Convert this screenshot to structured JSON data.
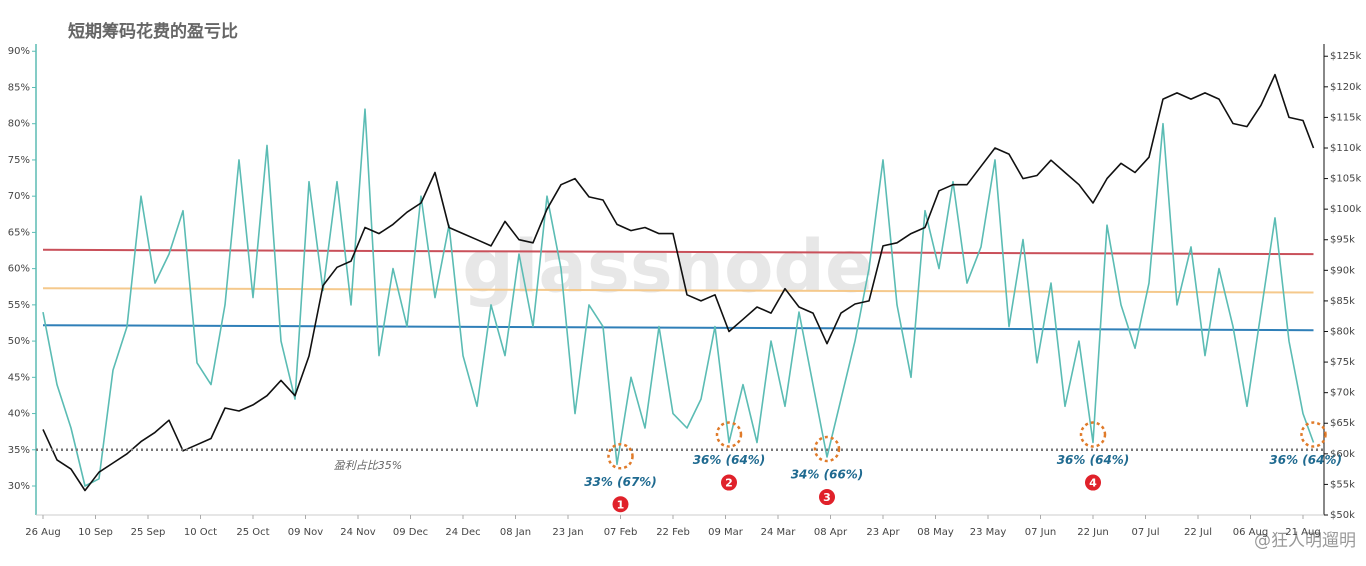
{
  "chart_data": {
    "type": "line",
    "title": "短期筹码花费的盈亏比",
    "watermark": "glassnode",
    "credit": "@狂人明遛明",
    "xlim": [
      -2,
      366
    ],
    "xticks": [
      {
        "value": 0,
        "label": "26 Aug"
      },
      {
        "value": 15,
        "label": "10 Sep"
      },
      {
        "value": 30,
        "label": "25 Sep"
      },
      {
        "value": 45,
        "label": "10 Oct"
      },
      {
        "value": 60,
        "label": "25 Oct"
      },
      {
        "value": 75,
        "label": "09 Nov"
      },
      {
        "value": 90,
        "label": "24 Nov"
      },
      {
        "value": 105,
        "label": "09 Dec"
      },
      {
        "value": 120,
        "label": "24 Dec"
      },
      {
        "value": 135,
        "label": "08 Jan"
      },
      {
        "value": 150,
        "label": "23 Jan"
      },
      {
        "value": 165,
        "label": "07 Feb"
      },
      {
        "value": 180,
        "label": "22 Feb"
      },
      {
        "value": 195,
        "label": "09 Mar"
      },
      {
        "value": 210,
        "label": "24 Mar"
      },
      {
        "value": 225,
        "label": "08 Apr"
      },
      {
        "value": 240,
        "label": "23 Apr"
      },
      {
        "value": 255,
        "label": "08 May"
      },
      {
        "value": 270,
        "label": "23 May"
      },
      {
        "value": 285,
        "label": "07 Jun"
      },
      {
        "value": 300,
        "label": "22 Jun"
      },
      {
        "value": 315,
        "label": "07 Jul"
      },
      {
        "value": 330,
        "label": "22 Jul"
      },
      {
        "value": 345,
        "label": "06 Aug"
      },
      {
        "value": 360,
        "label": "21 Aug"
      }
    ],
    "ylim": [
      26,
      91
    ],
    "yticks": [
      {
        "value": 30,
        "label": "30%"
      },
      {
        "value": 35,
        "label": "35%"
      },
      {
        "value": 40,
        "label": "40%"
      },
      {
        "value": 45,
        "label": "45%"
      },
      {
        "value": 50,
        "label": "50%"
      },
      {
        "value": 55,
        "label": "55%"
      },
      {
        "value": 60,
        "label": "60%"
      },
      {
        "value": 65,
        "label": "65%"
      },
      {
        "value": 70,
        "label": "70%"
      },
      {
        "value": 75,
        "label": "75%"
      },
      {
        "value": 80,
        "label": "80%"
      },
      {
        "value": 85,
        "label": "85%"
      },
      {
        "value": 90,
        "label": "90%"
      }
    ],
    "y2lim": [
      50000,
      127000
    ],
    "y2ticks": [
      {
        "value": 50000,
        "label": "$50k"
      },
      {
        "value": 55000,
        "label": "$55k"
      },
      {
        "value": 60000,
        "label": "$60k"
      },
      {
        "value": 65000,
        "label": "$65k"
      },
      {
        "value": 70000,
        "label": "$70k"
      },
      {
        "value": 75000,
        "label": "$75k"
      },
      {
        "value": 80000,
        "label": "$80k"
      },
      {
        "value": 85000,
        "label": "$85k"
      },
      {
        "value": 90000,
        "label": "$90k"
      },
      {
        "value": 95000,
        "label": "$95k"
      },
      {
        "value": 100000,
        "label": "$100k"
      },
      {
        "value": 105000,
        "label": "$105k"
      },
      {
        "value": 110000,
        "label": "$110k"
      },
      {
        "value": 115000,
        "label": "$115k"
      },
      {
        "value": 120000,
        "label": "$120k"
      },
      {
        "value": 125000,
        "label": "$125k"
      }
    ],
    "x": [
      0,
      4,
      8,
      12,
      16,
      20,
      24,
      28,
      32,
      36,
      40,
      44,
      48,
      52,
      56,
      60,
      64,
      68,
      72,
      76,
      80,
      84,
      88,
      92,
      96,
      100,
      104,
      108,
      112,
      116,
      120,
      124,
      128,
      132,
      136,
      140,
      144,
      148,
      152,
      156,
      160,
      164,
      168,
      172,
      176,
      180,
      184,
      188,
      192,
      196,
      200,
      204,
      208,
      212,
      216,
      220,
      224,
      228,
      232,
      236,
      240,
      244,
      248,
      252,
      256,
      260,
      264,
      268,
      272,
      276,
      280,
      284,
      288,
      292,
      296,
      300,
      304,
      308,
      312,
      316,
      320,
      324,
      328,
      332,
      336,
      340,
      344,
      348,
      352,
      356,
      360,
      363
    ],
    "series": [
      {
        "color": "#5bbcb4",
        "values": [
          54,
          44,
          38,
          30,
          31,
          46,
          52,
          70,
          58,
          62,
          68,
          47,
          44,
          55,
          75,
          56,
          77,
          50,
          42,
          72,
          57,
          72,
          55,
          82,
          48,
          60,
          52,
          70,
          56,
          66,
          48,
          41,
          55,
          48,
          62,
          52,
          70,
          60,
          40,
          55,
          52,
          33,
          45,
          38,
          52,
          40,
          38,
          42,
          52,
          36,
          44,
          36,
          50,
          41,
          54,
          44,
          34,
          42,
          50,
          60,
          75,
          55,
          45,
          68,
          60,
          72,
          58,
          63,
          75,
          52,
          64,
          47,
          58,
          41,
          50,
          36,
          66,
          55,
          49,
          58,
          80,
          55,
          63,
          48,
          60,
          52,
          41,
          54,
          67,
          50,
          40,
          36
        ]
      },
      {
        "color": "#111111",
        "axis": "y2",
        "values": [
          64000,
          59000,
          57500,
          54000,
          57000,
          58500,
          60000,
          62000,
          63500,
          65500,
          60500,
          61500,
          62500,
          67500,
          67000,
          68000,
          69500,
          72000,
          69500,
          76000,
          87500,
          90500,
          91500,
          97000,
          96000,
          97500,
          99500,
          101000,
          106000,
          97000,
          96000,
          95000,
          94000,
          98000,
          95000,
          94500,
          100000,
          104000,
          105000,
          102000,
          101500,
          97500,
          96500,
          97000,
          96000,
          96000,
          86000,
          85000,
          86000,
          80000,
          82000,
          84000,
          83000,
          87000,
          84000,
          83000,
          78000,
          83000,
          84500,
          85000,
          94000,
          94500,
          96000,
          97000,
          103000,
          104000,
          104000,
          107000,
          110000,
          109000,
          105000,
          105500,
          108000,
          106000,
          104000,
          101000,
          105000,
          107500,
          106000,
          108500,
          118000,
          119000,
          118000,
          119000,
          118000,
          114000,
          113500,
          117000,
          122000,
          115000,
          114500,
          110000
        ]
      },
      {
        "color": "#c9505a",
        "x": [
          0,
          363
        ],
        "values": [
          62.6,
          62.0
        ]
      },
      {
        "color": "#f5c98c",
        "x": [
          0,
          363
        ],
        "values": [
          57.3,
          56.7
        ]
      },
      {
        "color": "#2f7fb8",
        "x": [
          0,
          363
        ],
        "values": [
          52.2,
          51.5
        ]
      }
    ],
    "reference_line": {
      "value": 35,
      "label": "盈利占比35%"
    },
    "annotations": [
      {
        "text": "33%  (67%)",
        "marker": "1",
        "x": 165,
        "y": 33
      },
      {
        "text": "36%  (64%)",
        "marker": "2",
        "x": 196,
        "y": 36
      },
      {
        "text": "34%  (66%)",
        "marker": "3",
        "x": 224,
        "y": 34
      },
      {
        "text": "36%  (64%)",
        "marker": "4",
        "x": 300,
        "y": 36
      },
      {
        "text": "36%  (64%)",
        "x": 363,
        "y": 36
      }
    ]
  }
}
